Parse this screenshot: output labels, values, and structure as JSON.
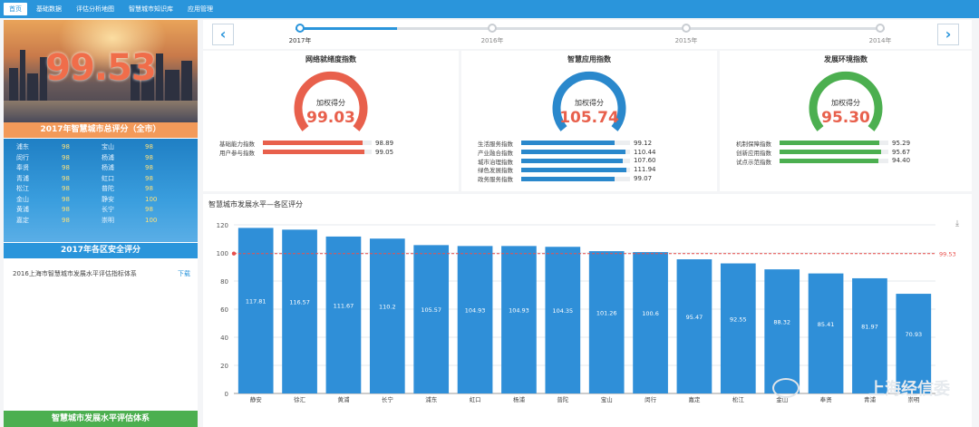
{
  "nav": {
    "tabs": [
      {
        "label": "首页",
        "active": true
      },
      {
        "label": "基础数据",
        "active": false
      },
      {
        "label": "评估分析地图",
        "active": false
      },
      {
        "label": "智慧城市知识库",
        "active": false
      },
      {
        "label": "应用管理",
        "active": false
      }
    ]
  },
  "left": {
    "overall_score": "99.53",
    "overall_title": "2017年智慧城市总评分（全市）",
    "districts": [
      {
        "name": "浦东",
        "score": "98",
        "name2": "宝山",
        "score2": "98"
      },
      {
        "name": "闵行",
        "score": "98",
        "name2": "杨浦",
        "score2": "98"
      },
      {
        "name": "奉贤",
        "score": "98",
        "name2": "杨浦",
        "score2": "98"
      },
      {
        "name": "青浦",
        "score": "98",
        "name2": "虹口",
        "score2": "98"
      },
      {
        "name": "松江",
        "score": "98",
        "name2": "普陀",
        "score2": "98"
      },
      {
        "name": "金山",
        "score": "98",
        "name2": "静安",
        "score2": "100"
      },
      {
        "name": "黄浦",
        "score": "98",
        "name2": "长宁",
        "score2": "98"
      },
      {
        "name": "嘉定",
        "score": "98",
        "name2": "崇明",
        "score2": "100"
      }
    ],
    "safety_title": "2017年各区安全评分",
    "doc_text": "2016上海市智慧城市发展水平评估指标体系",
    "doc_download": "下载",
    "footer_title": "智慧城市发展水平评估体系"
  },
  "timeline": {
    "years": [
      {
        "label": "2017年",
        "active": true
      },
      {
        "label": "2016年",
        "active": false
      },
      {
        "label": "2015年",
        "active": false
      },
      {
        "label": "2014年",
        "active": false
      }
    ],
    "prev_icon": "chevron-left-icon",
    "next_icon": "chevron-right-icon"
  },
  "indices": [
    {
      "title": "网络就绪度指数",
      "gauge_label": "加权得分",
      "score": "99.03",
      "color": "#e8604c",
      "items": [
        {
          "label": "基础能力指数",
          "value": "98.89",
          "fill": 0.92
        },
        {
          "label": "用户参与指数",
          "value": "99.05",
          "fill": 0.93
        }
      ]
    },
    {
      "title": "智慧应用指数",
      "gauge_label": "加权得分",
      "score": "105.74",
      "color": "#2a88cc",
      "items": [
        {
          "label": "生活服务指数",
          "value": "99.12",
          "fill": 0.86
        },
        {
          "label": "产业融合指数",
          "value": "110.44",
          "fill": 0.96
        },
        {
          "label": "城市治理指数",
          "value": "107.60",
          "fill": 0.93
        },
        {
          "label": "绿色发展指数",
          "value": "111.94",
          "fill": 0.97
        },
        {
          "label": "政务服务指数",
          "value": "99.07",
          "fill": 0.86
        }
      ]
    },
    {
      "title": "发展环境指数",
      "gauge_label": "加权得分",
      "score": "95.30",
      "color": "#4caf50",
      "items": [
        {
          "label": "机制保障指数",
          "value": "95.29",
          "fill": 0.92
        },
        {
          "label": "创新应用指数",
          "value": "95.67",
          "fill": 0.93
        },
        {
          "label": "试点示范指数",
          "value": "94.40",
          "fill": 0.91
        }
      ]
    }
  ],
  "chart_title": "智慧城市发展水平—各区评分",
  "watermark": "上海经信委",
  "chart_data": {
    "type": "bar",
    "categories": [
      "静安",
      "徐汇",
      "黄浦",
      "长宁",
      "浦东",
      "虹口",
      "杨浦",
      "普陀",
      "宝山",
      "闵行",
      "嘉定",
      "松江",
      "金山",
      "奉贤",
      "青浦",
      "崇明"
    ],
    "values": [
      117.81,
      116.57,
      111.67,
      110.2,
      105.57,
      104.93,
      104.93,
      104.35,
      101.26,
      100.6,
      95.47,
      92.55,
      88.32,
      85.41,
      81.97,
      70.93
    ],
    "value_labels": [
      "117.81",
      "116.57",
      "111.67",
      "110.2",
      "105.57",
      "104.93",
      "104.93",
      "104.35",
      "101.26",
      "100.6",
      "95.47",
      "92.55",
      "88.32",
      "85.41",
      "81.97",
      "70.93"
    ],
    "ylim": [
      0,
      120
    ],
    "yticks": [
      "0",
      "20",
      "40",
      "60",
      "80",
      "100",
      "120"
    ],
    "reference_line": {
      "value": 99.53,
      "label": "99.53"
    },
    "bar_color": "#2f8fd8",
    "grid": true
  }
}
